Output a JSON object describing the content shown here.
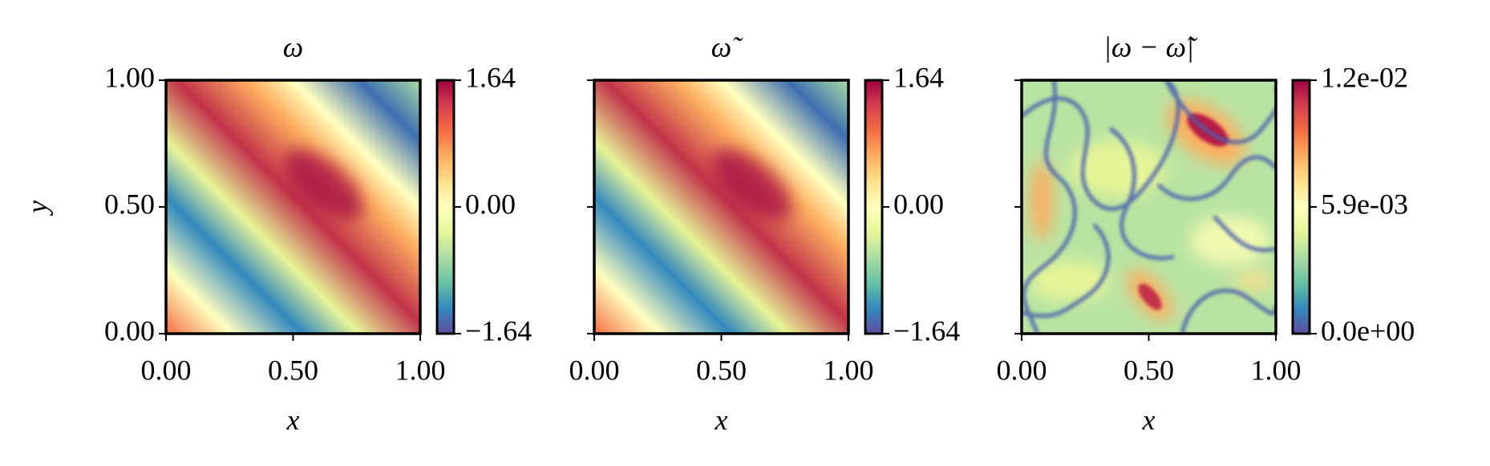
{
  "chart_data": [
    {
      "type": "heatmap",
      "title": "ω",
      "xlabel": "x",
      "ylabel": "y",
      "xlim": [
        0,
        1
      ],
      "ylim": [
        0,
        1
      ],
      "xticks": [
        {
          "value": 0,
          "label": "0.00"
        },
        {
          "value": 0.5,
          "label": "0.50"
        },
        {
          "value": 1,
          "label": "1.00"
        }
      ],
      "yticks": [
        {
          "value": 0,
          "label": "0.00"
        },
        {
          "value": 0.5,
          "label": "0.50"
        },
        {
          "value": 1,
          "label": "1.00"
        }
      ],
      "colorbar": {
        "lim": [
          -1.64,
          1.64
        ],
        "ticks": [
          {
            "value": -1.64,
            "label": "−1.64"
          },
          {
            "value": 0,
            "label": "0.00"
          },
          {
            "value": 1.64,
            "label": "1.64"
          }
        ]
      },
      "colormap": [
        "#5e4fa2",
        "#3288bd",
        "#66c2a5",
        "#abdda4",
        "#e6f598",
        "#ffffbf",
        "#fee08b",
        "#fdae61",
        "#f46d43",
        "#d53e4f",
        "#9e0142"
      ]
    },
    {
      "type": "heatmap",
      "title": "ω̃",
      "xlabel": "x",
      "xlim": [
        0,
        1
      ],
      "ylim": [
        0,
        1
      ],
      "xticks": [
        {
          "value": 0,
          "label": "0.00"
        },
        {
          "value": 0.5,
          "label": "0.50"
        },
        {
          "value": 1,
          "label": "1.00"
        }
      ],
      "yticks": [
        0,
        0.5,
        1
      ],
      "colorbar": {
        "lim": [
          -1.64,
          1.64
        ],
        "ticks": [
          {
            "value": -1.64,
            "label": "−1.64"
          },
          {
            "value": 0,
            "label": "0.00"
          },
          {
            "value": 1.64,
            "label": "1.64"
          }
        ]
      },
      "colormap": [
        "#5e4fa2",
        "#3288bd",
        "#66c2a5",
        "#abdda4",
        "#e6f598",
        "#ffffbf",
        "#fee08b",
        "#fdae61",
        "#f46d43",
        "#d53e4f",
        "#9e0142"
      ]
    },
    {
      "type": "heatmap",
      "title": "|ω − ω̃|",
      "xlabel": "x",
      "xlim": [
        0,
        1
      ],
      "ylim": [
        0,
        1
      ],
      "xticks": [
        {
          "value": 0,
          "label": "0.00"
        },
        {
          "value": 0.5,
          "label": "0.50"
        },
        {
          "value": 1,
          "label": "1.00"
        }
      ],
      "yticks": [
        0,
        0.5,
        1
      ],
      "colorbar": {
        "lim": [
          0,
          0.0118
        ],
        "ticks": [
          {
            "value": 0,
            "label": "0.0e+00"
          },
          {
            "value": 0.0059,
            "label": "5.9e-03"
          },
          {
            "value": 0.0118,
            "label": "1.2e-02"
          }
        ]
      },
      "colormap": [
        "#5e4fa2",
        "#3288bd",
        "#66c2a5",
        "#abdda4",
        "#e6f598",
        "#ffffbf",
        "#fee08b",
        "#fdae61",
        "#f46d43",
        "#d53e4f",
        "#9e0142"
      ]
    }
  ]
}
